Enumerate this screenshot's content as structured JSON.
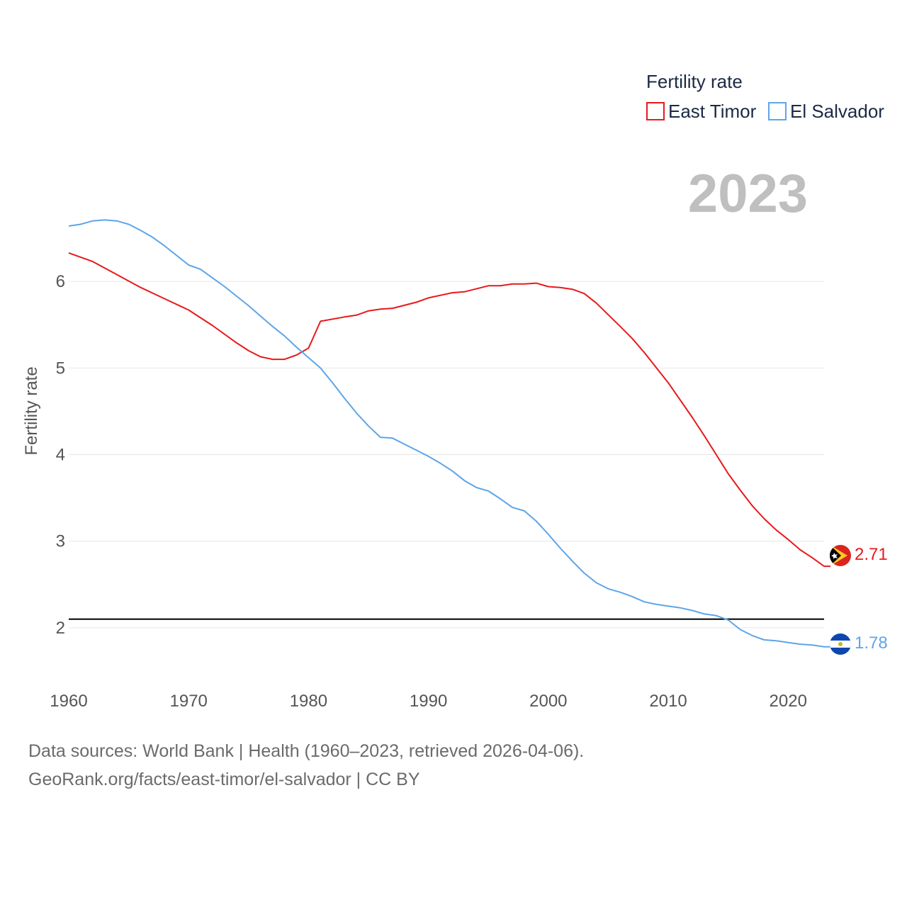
{
  "chart_data": {
    "type": "line",
    "title": "Fertility rate",
    "year_display": "2023",
    "xlabel": "",
    "ylabel": "Fertility rate",
    "xlim": [
      1960,
      2023
    ],
    "ylim": [
      1.5,
      7
    ],
    "x_ticks": [
      1960,
      1970,
      1980,
      1990,
      2000,
      2010,
      2020
    ],
    "y_ticks": [
      2,
      3,
      4,
      5,
      6
    ],
    "reference_line": {
      "value": 2.1,
      "color": "#000000"
    },
    "series": [
      {
        "name": "East Timor",
        "color": "#e8191c",
        "end_label": "2.71",
        "flag_icon": "east-timor-flag-icon",
        "points": [
          [
            1960,
            6.33
          ],
          [
            1962,
            6.23
          ],
          [
            1964,
            6.08
          ],
          [
            1966,
            5.93
          ],
          [
            1968,
            5.8
          ],
          [
            1970,
            5.67
          ],
          [
            1972,
            5.49
          ],
          [
            1974,
            5.29
          ],
          [
            1975,
            5.2
          ],
          [
            1976,
            5.13
          ],
          [
            1977,
            5.1
          ],
          [
            1978,
            5.1
          ],
          [
            1979,
            5.15
          ],
          [
            1980,
            5.23
          ],
          [
            1981,
            5.54
          ],
          [
            1983,
            5.59
          ],
          [
            1984,
            5.61
          ],
          [
            1985,
            5.66
          ],
          [
            1986,
            5.68
          ],
          [
            1987,
            5.69
          ],
          [
            1989,
            5.76
          ],
          [
            1990,
            5.81
          ],
          [
            1992,
            5.87
          ],
          [
            1993,
            5.88
          ],
          [
            1995,
            5.95
          ],
          [
            1996,
            5.95
          ],
          [
            1997,
            5.97
          ],
          [
            1998,
            5.97
          ],
          [
            1999,
            5.98
          ],
          [
            2000,
            5.94
          ],
          [
            2001,
            5.93
          ],
          [
            2002,
            5.91
          ],
          [
            2003,
            5.86
          ],
          [
            2004,
            5.75
          ],
          [
            2006,
            5.48
          ],
          [
            2007,
            5.34
          ],
          [
            2008,
            5.18
          ],
          [
            2010,
            4.83
          ],
          [
            2012,
            4.43
          ],
          [
            2013,
            4.22
          ],
          [
            2014,
            4.0
          ],
          [
            2015,
            3.78
          ],
          [
            2016,
            3.59
          ],
          [
            2017,
            3.41
          ],
          [
            2018,
            3.26
          ],
          [
            2019,
            3.13
          ],
          [
            2020,
            3.02
          ],
          [
            2021,
            2.9
          ],
          [
            2022,
            2.81
          ],
          [
            2023,
            2.71
          ]
        ]
      },
      {
        "name": "El Salvador",
        "color": "#5da5e8",
        "end_label": "1.78",
        "flag_icon": "el-salvador-flag-icon",
        "points": [
          [
            1960,
            6.64
          ],
          [
            1961,
            6.66
          ],
          [
            1962,
            6.7
          ],
          [
            1963,
            6.71
          ],
          [
            1964,
            6.7
          ],
          [
            1965,
            6.66
          ],
          [
            1966,
            6.59
          ],
          [
            1967,
            6.51
          ],
          [
            1968,
            6.41
          ],
          [
            1969,
            6.3
          ],
          [
            1970,
            6.19
          ],
          [
            1971,
            6.14
          ],
          [
            1972,
            6.04
          ],
          [
            1973,
            5.94
          ],
          [
            1974,
            5.83
          ],
          [
            1975,
            5.72
          ],
          [
            1976,
            5.6
          ],
          [
            1977,
            5.48
          ],
          [
            1978,
            5.37
          ],
          [
            1979,
            5.24
          ],
          [
            1980,
            5.12
          ],
          [
            1981,
            5.0
          ],
          [
            1982,
            4.83
          ],
          [
            1983,
            4.65
          ],
          [
            1984,
            4.48
          ],
          [
            1985,
            4.33
          ],
          [
            1986,
            4.2
          ],
          [
            1987,
            4.19
          ],
          [
            1988,
            4.12
          ],
          [
            1989,
            4.05
          ],
          [
            1990,
            3.98
          ],
          [
            1991,
            3.9
          ],
          [
            1992,
            3.81
          ],
          [
            1993,
            3.7
          ],
          [
            1994,
            3.62
          ],
          [
            1995,
            3.58
          ],
          [
            1996,
            3.49
          ],
          [
            1997,
            3.39
          ],
          [
            1998,
            3.35
          ],
          [
            1999,
            3.23
          ],
          [
            2000,
            3.08
          ],
          [
            2001,
            2.92
          ],
          [
            2002,
            2.77
          ],
          [
            2003,
            2.63
          ],
          [
            2004,
            2.52
          ],
          [
            2005,
            2.45
          ],
          [
            2006,
            2.41
          ],
          [
            2007,
            2.36
          ],
          [
            2008,
            2.3
          ],
          [
            2009,
            2.27
          ],
          [
            2010,
            2.25
          ],
          [
            2011,
            2.23
          ],
          [
            2012,
            2.2
          ],
          [
            2013,
            2.16
          ],
          [
            2014,
            2.14
          ],
          [
            2015,
            2.09
          ],
          [
            2016,
            1.98
          ],
          [
            2017,
            1.91
          ],
          [
            2018,
            1.86
          ],
          [
            2019,
            1.85
          ],
          [
            2020,
            1.83
          ],
          [
            2021,
            1.81
          ],
          [
            2022,
            1.8
          ],
          [
            2023,
            1.78
          ]
        ]
      }
    ]
  },
  "footer": {
    "line1": "Data sources: World Bank | Health (1960–2023, retrieved 2026-04-06).",
    "line2": "GeoRank.org/facts/east-timor/el-salvador | CC BY"
  }
}
